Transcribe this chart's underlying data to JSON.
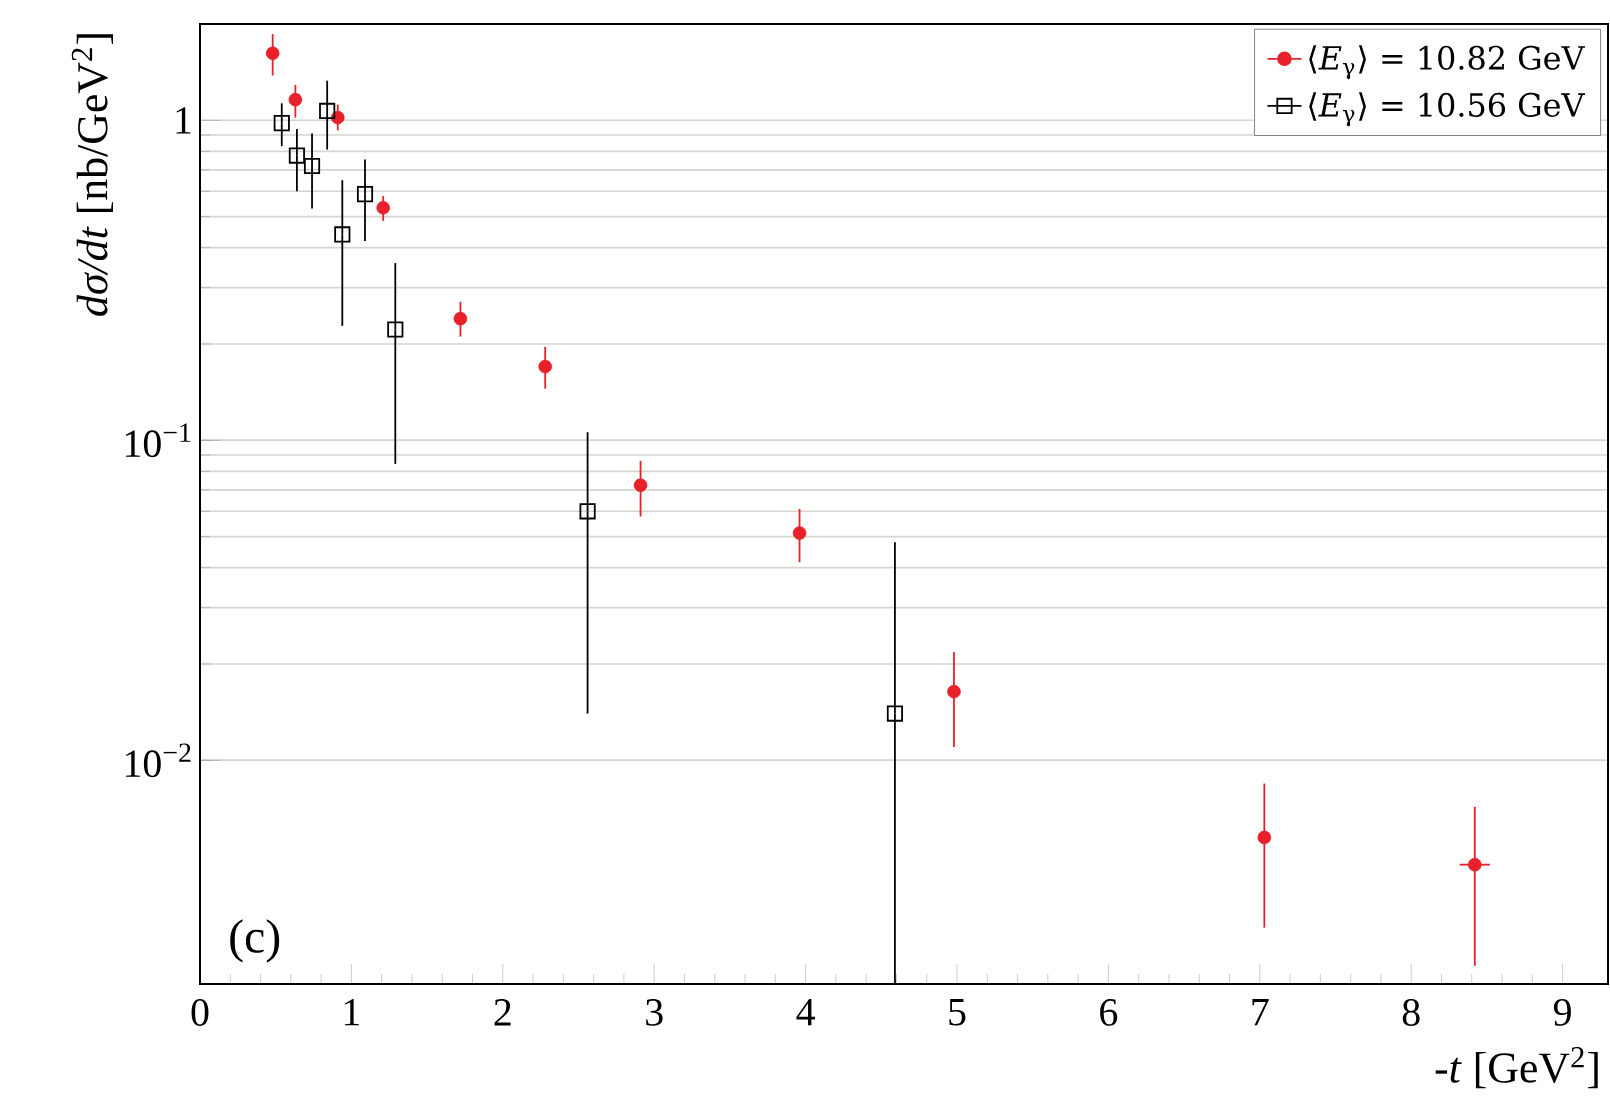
{
  "chart_data": {
    "type": "scatter",
    "xlabel": "-*t* [GeV$^{2}$]",
    "ylabel": "*dσ/dt* [nb/GeV$^{2}$]",
    "annotations": [
      "(c)"
    ],
    "log": "y",
    "grid": "y",
    "legend": "top right",
    "xlim": [
      0,
      9.3
    ],
    "xticks": [
      0,
      1,
      2,
      3,
      4,
      5,
      6,
      7,
      8,
      9
    ],
    "ylim": [
      0.002,
      2
    ],
    "yticks": [
      {
        "value": 0.01,
        "label": "10$^{−2}$"
      },
      {
        "value": 0.1,
        "label": "10$^{−1}$"
      },
      1
    ],
    "series": [
      {
        "name": "⟨*E*$_{γ}$⟩ = 10.82 GeV",
        "color": "#e8202a",
        "marker": "circle",
        "x": [
          0.48,
          0.63,
          0.91,
          1.21,
          1.72,
          2.28,
          2.91,
          3.96,
          4.98,
          7.03,
          8.42
        ],
        "values": [
          1.62,
          1.16,
          1.02,
          0.533,
          0.24,
          0.17,
          0.0724,
          0.0513,
          0.0164,
          0.00574,
          0.00472
        ],
        "errors": [
          [
            1.38,
            1.86
          ],
          [
            1.02,
            1.29
          ],
          [
            0.93,
            1.12
          ],
          [
            0.485,
            0.58
          ],
          [
            0.211,
            0.271
          ],
          [
            0.145,
            0.196
          ],
          [
            0.0578,
            0.0863
          ],
          [
            0.0416,
            0.061
          ],
          [
            0.011,
            0.0218
          ],
          [
            0.003,
            0.00846
          ],
          [
            0.00228,
            0.00716
          ]
        ],
        "xerrors": [
          null,
          null,
          null,
          null,
          null,
          null,
          null,
          null,
          null,
          null,
          0.1
        ]
      },
      {
        "name": "⟨*E*$_{γ}$⟩ = 10.56 GeV",
        "color": "#000000",
        "marker": "square",
        "x": [
          0.54,
          0.64,
          0.74,
          0.84,
          0.94,
          1.09,
          1.29,
          2.56,
          4.59
        ],
        "values": [
          0.98,
          0.776,
          0.72,
          1.07,
          0.44,
          0.588,
          0.222,
          0.06,
          0.014
        ],
        "errors": [
          [
            0.83,
            1.13
          ],
          [
            0.6,
            0.94
          ],
          [
            0.53,
            0.91
          ],
          [
            0.81,
            1.33
          ],
          [
            0.228,
            0.65
          ],
          [
            0.42,
            0.754
          ],
          [
            0.0844,
            0.358
          ],
          [
            0.014,
            0.106
          ],
          [
            0.002,
            0.048
          ]
        ]
      }
    ]
  }
}
